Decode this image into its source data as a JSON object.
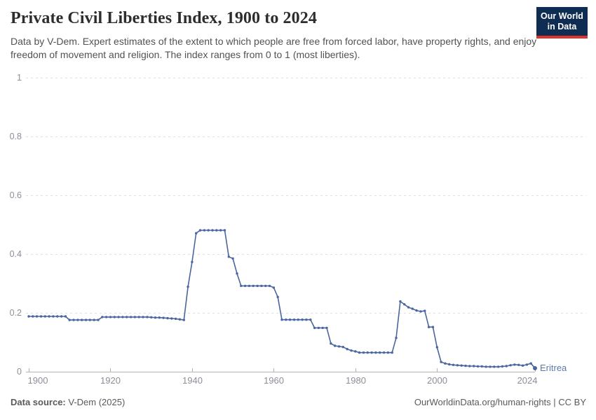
{
  "header": {
    "title": "Private Civil Liberties Index, 1900 to 2024",
    "subtitle": "Data by V-Dem. Expert estimates of the extent to which people are free from forced labor, have property rights, and enjoy freedom of movement and religion. The index ranges from 0 to 1 (most liberties)."
  },
  "logo": {
    "line1": "Our World",
    "line2": "in Data",
    "bg_color": "#0f2c52",
    "bar_color": "#dc342c"
  },
  "footer": {
    "source_label": "Data source:",
    "source_value": " V-Dem (2025)",
    "right_text": "OurWorldinData.org/human-rights | CC BY"
  },
  "chart_data": {
    "type": "line",
    "title": "Private Civil Liberties Index, 1900 to 2024",
    "xlabel": "",
    "ylabel": "",
    "xlim": [
      1900,
      2024
    ],
    "ylim": [
      0,
      1
    ],
    "x_ticks": [
      1900,
      1920,
      1940,
      1960,
      1980,
      2000,
      2024
    ],
    "y_ticks": [
      0,
      0.2,
      0.4,
      0.6,
      0.8,
      1
    ],
    "y_tick_labels": [
      "0",
      "0.2",
      "0.4",
      "0.6",
      "0.8",
      "1"
    ],
    "grid": "horizontal-dashed",
    "grid_color": "#e0e0e0",
    "axis_color": "#b3b3b3",
    "tick_label_color": "#8a8f98",
    "legend": "end-of-line-label",
    "series": [
      {
        "name": "Eritrea",
        "color": "#4a66a0",
        "label_color": "#5b79a9",
        "year_start": 1900,
        "year_end": 2024,
        "values": [
          0.188,
          0.188,
          0.188,
          0.188,
          0.188,
          0.188,
          0.188,
          0.188,
          0.188,
          0.188,
          0.176,
          0.176,
          0.176,
          0.176,
          0.176,
          0.176,
          0.176,
          0.176,
          0.186,
          0.186,
          0.186,
          0.186,
          0.186,
          0.186,
          0.186,
          0.186,
          0.186,
          0.186,
          0.186,
          0.186,
          0.185,
          0.184,
          0.184,
          0.183,
          0.182,
          0.181,
          0.18,
          0.178,
          0.176,
          0.289,
          0.373,
          0.471,
          0.481,
          0.481,
          0.481,
          0.481,
          0.481,
          0.481,
          0.481,
          0.391,
          0.385,
          0.334,
          0.292,
          0.292,
          0.292,
          0.292,
          0.292,
          0.292,
          0.292,
          0.292,
          0.286,
          0.254,
          0.177,
          0.177,
          0.177,
          0.177,
          0.177,
          0.177,
          0.177,
          0.177,
          0.149,
          0.149,
          0.149,
          0.149,
          0.096,
          0.088,
          0.086,
          0.084,
          0.077,
          0.072,
          0.069,
          0.065,
          0.065,
          0.065,
          0.065,
          0.065,
          0.065,
          0.065,
          0.065,
          0.065,
          0.115,
          0.239,
          0.229,
          0.219,
          0.214,
          0.208,
          0.205,
          0.207,
          0.152,
          0.152,
          0.083,
          0.033,
          0.028,
          0.025,
          0.023,
          0.022,
          0.021,
          0.02,
          0.019,
          0.019,
          0.018,
          0.018,
          0.017,
          0.017,
          0.017,
          0.017,
          0.018,
          0.019,
          0.022,
          0.024,
          0.023,
          0.021,
          0.024,
          0.028,
          0.012
        ]
      }
    ]
  }
}
